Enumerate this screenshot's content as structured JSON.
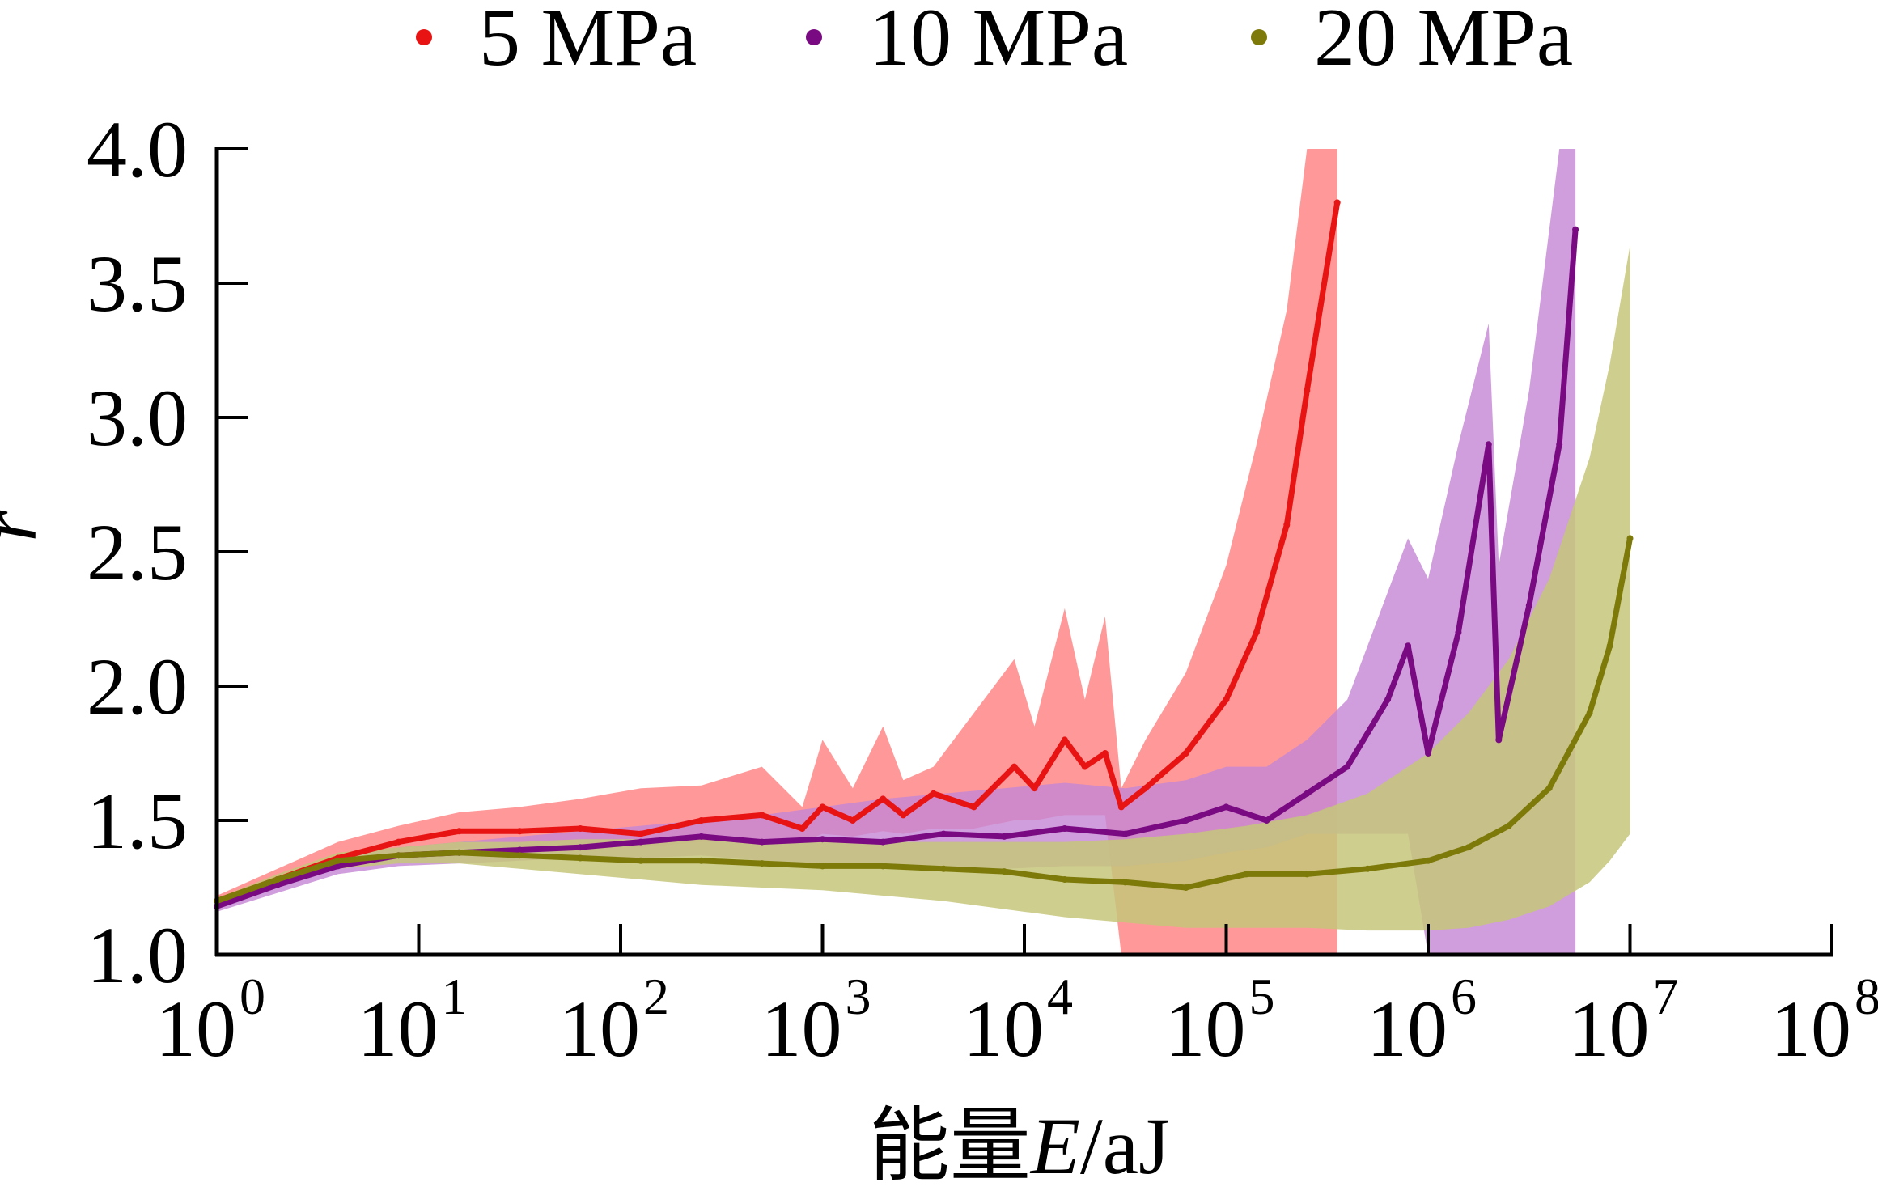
{
  "chart_data": {
    "type": "area",
    "title": "",
    "xlabel_prefix": "能量",
    "xlabel_var": "E",
    "xlabel_unit": "/aJ",
    "ylabel": "r",
    "xscale": "log",
    "xlim_exponent": [
      0,
      8
    ],
    "ylim": [
      1.0,
      4.0
    ],
    "grid": false,
    "legend_position": "top",
    "x_ticks": [
      {
        "base": "10",
        "exp": "0",
        "value": 0
      },
      {
        "base": "10",
        "exp": "1",
        "value": 1
      },
      {
        "base": "10",
        "exp": "2",
        "value": 2
      },
      {
        "base": "10",
        "exp": "3",
        "value": 3
      },
      {
        "base": "10",
        "exp": "4",
        "value": 4
      },
      {
        "base": "10",
        "exp": "5",
        "value": 5
      },
      {
        "base": "10",
        "exp": "6",
        "value": 6
      },
      {
        "base": "10",
        "exp": "7",
        "value": 7
      },
      {
        "base": "10",
        "exp": "8",
        "value": 8
      }
    ],
    "y_ticks": [
      {
        "label": "1.0",
        "value": 1.0
      },
      {
        "label": "1.5",
        "value": 1.5
      },
      {
        "label": "2.0",
        "value": 2.0
      },
      {
        "label": "2.5",
        "value": 2.5
      },
      {
        "label": "3.0",
        "value": 3.0
      },
      {
        "label": "3.5",
        "value": 3.5
      },
      {
        "label": "4.0",
        "value": 4.0
      }
    ],
    "series": [
      {
        "name": "5 MPa",
        "color": "#e81414",
        "fill": "#ff7f7f",
        "x_log10E": [
          0,
          0.3,
          0.6,
          0.9,
          1.2,
          1.5,
          1.8,
          2.1,
          2.4,
          2.7,
          2.9,
          3.0,
          3.15,
          3.3,
          3.4,
          3.55,
          3.75,
          3.95,
          4.05,
          4.2,
          4.3,
          4.4,
          4.48,
          4.6,
          4.8,
          5.0,
          5.15,
          5.3,
          5.4,
          5.55
        ],
        "mean": [
          1.2,
          1.28,
          1.36,
          1.42,
          1.46,
          1.46,
          1.47,
          1.45,
          1.5,
          1.52,
          1.47,
          1.55,
          1.5,
          1.58,
          1.52,
          1.6,
          1.55,
          1.7,
          1.62,
          1.8,
          1.7,
          1.75,
          1.55,
          1.62,
          1.75,
          1.95,
          2.2,
          2.6,
          3.1,
          3.8
        ],
        "upper": [
          1.22,
          1.32,
          1.42,
          1.48,
          1.53,
          1.55,
          1.58,
          1.62,
          1.63,
          1.7,
          1.55,
          1.8,
          1.62,
          1.85,
          1.65,
          1.7,
          1.9,
          2.1,
          1.85,
          2.29,
          1.95,
          2.26,
          1.62,
          1.8,
          2.05,
          2.45,
          2.9,
          3.4,
          4.0,
          4.0
        ],
        "lower": [
          1.18,
          1.25,
          1.32,
          1.37,
          1.4,
          1.4,
          1.41,
          1.4,
          1.42,
          1.43,
          1.42,
          1.45,
          1.44,
          1.46,
          1.45,
          1.47,
          1.47,
          1.5,
          1.5,
          1.52,
          1.52,
          1.52,
          1.0,
          1.0,
          1.0,
          1.0,
          1.0,
          1.0,
          1.0,
          1.0
        ]
      },
      {
        "name": "10 MPa",
        "color": "#7a0a82",
        "fill": "#c486d4",
        "x_log10E": [
          0,
          0.3,
          0.6,
          0.9,
          1.2,
          1.5,
          1.8,
          2.1,
          2.4,
          2.7,
          3.0,
          3.3,
          3.6,
          3.9,
          4.2,
          4.5,
          4.8,
          5.0,
          5.2,
          5.4,
          5.6,
          5.8,
          5.9,
          6.0,
          6.15,
          6.3,
          6.35,
          6.5,
          6.65,
          6.73
        ],
        "mean": [
          1.18,
          1.26,
          1.33,
          1.37,
          1.38,
          1.39,
          1.4,
          1.42,
          1.44,
          1.42,
          1.43,
          1.42,
          1.45,
          1.44,
          1.47,
          1.45,
          1.5,
          1.55,
          1.5,
          1.6,
          1.7,
          1.95,
          2.15,
          1.75,
          2.2,
          2.9,
          1.8,
          2.3,
          2.9,
          3.7
        ],
        "upper": [
          1.2,
          1.28,
          1.36,
          1.4,
          1.42,
          1.44,
          1.46,
          1.48,
          1.5,
          1.52,
          1.55,
          1.58,
          1.6,
          1.62,
          1.64,
          1.62,
          1.65,
          1.7,
          1.7,
          1.8,
          1.95,
          2.35,
          2.55,
          2.4,
          2.9,
          3.35,
          2.45,
          3.1,
          4.0,
          4.0
        ],
        "lower": [
          1.16,
          1.23,
          1.3,
          1.33,
          1.34,
          1.35,
          1.36,
          1.36,
          1.37,
          1.35,
          1.34,
          1.33,
          1.33,
          1.32,
          1.33,
          1.33,
          1.35,
          1.38,
          1.4,
          1.45,
          1.45,
          1.45,
          1.45,
          1.0,
          1.0,
          1.0,
          1.0,
          1.0,
          1.0,
          1.0
        ]
      },
      {
        "name": "20 MPa",
        "color": "#7d7a0a",
        "fill": "#c6c57a",
        "x_log10E": [
          0,
          0.3,
          0.6,
          0.9,
          1.2,
          1.5,
          1.8,
          2.1,
          2.4,
          2.7,
          3.0,
          3.3,
          3.6,
          3.9,
          4.2,
          4.5,
          4.8,
          5.1,
          5.4,
          5.7,
          6.0,
          6.2,
          6.4,
          6.6,
          6.8,
          6.9,
          7.0
        ],
        "mean": [
          1.2,
          1.28,
          1.35,
          1.37,
          1.38,
          1.37,
          1.36,
          1.35,
          1.35,
          1.34,
          1.33,
          1.33,
          1.32,
          1.31,
          1.28,
          1.27,
          1.25,
          1.3,
          1.3,
          1.32,
          1.35,
          1.4,
          1.48,
          1.62,
          1.9,
          2.15,
          2.55
        ],
        "upper": [
          1.21,
          1.3,
          1.38,
          1.4,
          1.42,
          1.42,
          1.43,
          1.43,
          1.43,
          1.43,
          1.42,
          1.42,
          1.42,
          1.42,
          1.42,
          1.43,
          1.45,
          1.48,
          1.52,
          1.6,
          1.75,
          1.9,
          2.1,
          2.4,
          2.85,
          3.2,
          3.64
        ],
        "lower": [
          1.19,
          1.26,
          1.32,
          1.34,
          1.34,
          1.32,
          1.3,
          1.28,
          1.26,
          1.25,
          1.24,
          1.22,
          1.2,
          1.17,
          1.14,
          1.12,
          1.1,
          1.1,
          1.1,
          1.09,
          1.09,
          1.1,
          1.13,
          1.18,
          1.27,
          1.35,
          1.45
        ]
      }
    ]
  }
}
